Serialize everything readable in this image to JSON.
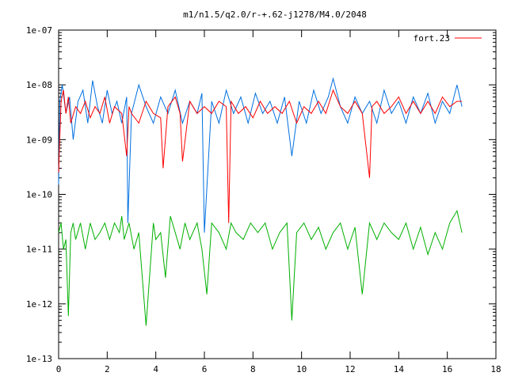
{
  "chart_data": {
    "type": "line",
    "title": "m1/n1.5/q2.0/r-+.62-j1278/M4.0/2048",
    "xlabel": "",
    "ylabel": "",
    "xlim": [
      0,
      18
    ],
    "ylim": [
      1e-13,
      1e-07
    ],
    "yscale": "log",
    "grid": false,
    "legend": "top-right",
    "x_ticks": [
      {
        "v": 0,
        "label": "0"
      },
      {
        "v": 2,
        "label": "2"
      },
      {
        "v": 4,
        "label": "4"
      },
      {
        "v": 6,
        "label": "6"
      },
      {
        "v": 8,
        "label": "8"
      },
      {
        "v": 10,
        "label": "10"
      },
      {
        "v": 12,
        "label": "12"
      },
      {
        "v": 14,
        "label": "14"
      },
      {
        "v": 16,
        "label": "16"
      },
      {
        "v": 18,
        "label": "18"
      }
    ],
    "y_ticks": [
      {
        "v": 1e-07,
        "label": "1e-07"
      },
      {
        "v": 1e-08,
        "label": "1e-08"
      },
      {
        "v": 1e-09,
        "label": "1e-09"
      },
      {
        "v": 1e-10,
        "label": "1e-10"
      },
      {
        "v": 1e-11,
        "label": "1e-11"
      },
      {
        "v": 1e-12,
        "label": "1e-12"
      },
      {
        "v": 1e-13,
        "label": "1e-13"
      }
    ],
    "series": [
      {
        "name": "fort.23",
        "color": "#ff0000",
        "x": [
          0.0,
          0.1,
          0.2,
          0.3,
          0.4,
          0.5,
          0.7,
          0.9,
          1.1,
          1.3,
          1.5,
          1.7,
          1.9,
          2.1,
          2.3,
          2.6,
          2.8,
          2.9,
          3.0,
          3.3,
          3.6,
          3.9,
          4.2,
          4.3,
          4.5,
          4.8,
          5.0,
          5.1,
          5.4,
          5.7,
          6.0,
          6.3,
          6.6,
          6.9,
          7.0,
          7.1,
          7.4,
          7.7,
          8.0,
          8.3,
          8.6,
          8.9,
          9.2,
          9.5,
          9.8,
          10.1,
          10.4,
          10.7,
          11.0,
          11.3,
          11.6,
          11.9,
          12.2,
          12.5,
          12.8,
          12.9,
          13.1,
          13.4,
          13.7,
          14.0,
          14.3,
          14.6,
          14.9,
          15.2,
          15.5,
          15.8,
          16.1,
          16.4,
          16.6
        ],
        "y": [
          2.5e-10,
          5e-09,
          8e-09,
          3e-09,
          6e-09,
          2e-09,
          4e-09,
          3e-09,
          5e-09,
          2.5e-09,
          4e-09,
          3e-09,
          6e-09,
          2e-09,
          4e-09,
          3e-09,
          5e-10,
          4e-09,
          3e-09,
          2e-09,
          5e-09,
          3e-09,
          2.5e-09,
          3e-10,
          4e-09,
          6e-09,
          3e-09,
          4e-10,
          5e-09,
          3e-09,
          4e-09,
          3e-09,
          5e-09,
          4e-09,
          3e-11,
          5e-09,
          3e-09,
          4e-09,
          2.5e-09,
          5e-09,
          3e-09,
          4e-09,
          3e-09,
          5e-09,
          2e-09,
          4e-09,
          3e-09,
          5e-09,
          3e-09,
          8e-09,
          4e-09,
          3e-09,
          5e-09,
          3e-09,
          2e-10,
          4e-09,
          5e-09,
          3e-09,
          4e-09,
          6e-09,
          3e-09,
          5e-09,
          3e-09,
          5e-09,
          3e-09,
          6e-09,
          4e-09,
          5e-09,
          5e-09
        ]
      },
      {
        "name": "",
        "color": "#0070e0",
        "x": [
          0.0,
          0.05,
          0.15,
          0.3,
          0.45,
          0.6,
          0.8,
          1.0,
          1.2,
          1.4,
          1.6,
          1.8,
          2.0,
          2.2,
          2.4,
          2.6,
          2.8,
          2.85,
          3.0,
          3.3,
          3.6,
          3.9,
          4.2,
          4.5,
          4.8,
          5.1,
          5.4,
          5.7,
          5.9,
          6.0,
          6.3,
          6.6,
          6.9,
          7.2,
          7.5,
          7.8,
          8.1,
          8.4,
          8.7,
          9.0,
          9.3,
          9.6,
          9.9,
          10.2,
          10.5,
          10.8,
          11.1,
          11.3,
          11.6,
          11.9,
          12.2,
          12.5,
          12.8,
          13.1,
          13.4,
          13.7,
          14.0,
          14.3,
          14.6,
          14.9,
          15.2,
          15.5,
          15.8,
          16.1,
          16.4,
          16.6
        ],
        "y": [
          1.5e-10,
          5e-09,
          1e-08,
          3e-09,
          6e-09,
          1e-09,
          5e-09,
          8e-09,
          2e-09,
          1.2e-08,
          4e-09,
          2e-09,
          8e-09,
          3e-09,
          5e-09,
          2e-09,
          6e-09,
          3e-11,
          3e-09,
          1e-08,
          4e-09,
          2e-09,
          6e-09,
          3e-09,
          8e-09,
          2e-09,
          5e-09,
          3e-09,
          7e-09,
          2e-11,
          5e-09,
          2e-09,
          8e-09,
          3e-09,
          6e-09,
          2e-09,
          7e-09,
          3e-09,
          5e-09,
          2e-09,
          6e-09,
          5e-10,
          5e-09,
          2e-09,
          8e-09,
          3e-09,
          6e-09,
          1.3e-08,
          4e-09,
          2e-09,
          6e-09,
          3e-09,
          5e-09,
          2e-09,
          8e-09,
          3e-09,
          5e-09,
          2e-09,
          6e-09,
          3e-09,
          7e-09,
          2e-09,
          5e-09,
          3e-09,
          1e-08,
          4e-09
        ]
      },
      {
        "name": "",
        "color": "#00b000",
        "x": [
          0.0,
          0.1,
          0.2,
          0.3,
          0.4,
          0.5,
          0.6,
          0.7,
          0.9,
          1.1,
          1.3,
          1.5,
          1.7,
          1.9,
          2.1,
          2.3,
          2.5,
          2.6,
          2.7,
          2.9,
          3.1,
          3.3,
          3.6,
          3.9,
          4.0,
          4.2,
          4.4,
          4.6,
          4.8,
          5.0,
          5.2,
          5.4,
          5.7,
          5.9,
          6.1,
          6.3,
          6.6,
          6.9,
          7.1,
          7.3,
          7.6,
          7.9,
          8.2,
          8.5,
          8.8,
          9.1,
          9.4,
          9.6,
          9.8,
          10.1,
          10.4,
          10.7,
          11.0,
          11.3,
          11.6,
          11.9,
          12.2,
          12.5,
          12.8,
          13.1,
          13.4,
          13.7,
          14.0,
          14.3,
          14.6,
          14.9,
          15.2,
          15.5,
          15.8,
          16.1,
          16.4,
          16.6
        ],
        "y": [
          2e-11,
          3e-11,
          1e-11,
          1.5e-11,
          6e-13,
          2e-11,
          3e-11,
          1.5e-11,
          3e-11,
          1e-11,
          3e-11,
          1.5e-11,
          2e-11,
          3e-11,
          1.5e-11,
          3e-11,
          2e-11,
          4e-11,
          1.5e-11,
          3e-11,
          1e-11,
          2e-11,
          4e-13,
          3e-11,
          1.5e-11,
          2e-11,
          3e-12,
          4e-11,
          2e-11,
          1e-11,
          3e-11,
          1.5e-11,
          3e-11,
          1e-11,
          1.5e-12,
          3e-11,
          2e-11,
          1e-11,
          3e-11,
          2e-11,
          1.5e-11,
          3e-11,
          2e-11,
          3e-11,
          1e-11,
          2e-11,
          3e-11,
          5e-13,
          2e-11,
          3e-11,
          1.5e-11,
          2.5e-11,
          1e-11,
          2e-11,
          3e-11,
          1e-11,
          2.5e-11,
          1.5e-12,
          3e-11,
          1.5e-11,
          3e-11,
          2e-11,
          1.5e-11,
          3e-11,
          1e-11,
          2.5e-11,
          8e-12,
          2e-11,
          1e-11,
          3e-11,
          5e-11,
          2e-11
        ]
      }
    ]
  }
}
